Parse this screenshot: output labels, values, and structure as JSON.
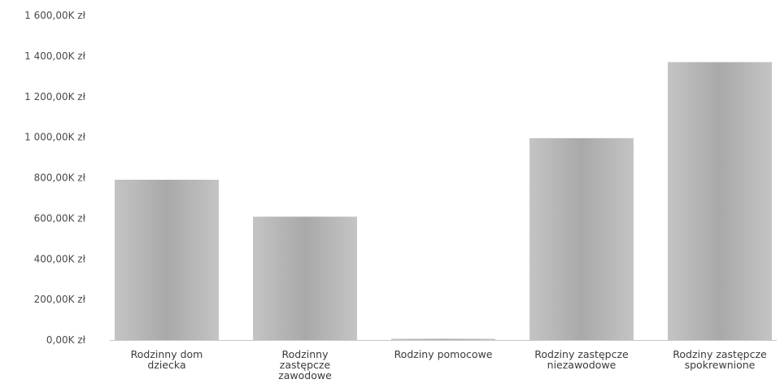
{
  "chart_data": {
    "type": "bar",
    "categories": [
      [
        "Rodzinny dom",
        "dziecka"
      ],
      [
        "Rodzinny",
        "zastępcze",
        "zawodowe"
      ],
      [
        "Rodziny pomocowe"
      ],
      [
        "Rodziny zastępcze",
        "niezawodowe"
      ],
      [
        "Rodziny zastępcze",
        "spokrewnione"
      ]
    ],
    "values": [
      790,
      608,
      2,
      995,
      1370
    ],
    "ylim": [
      0,
      1600
    ],
    "y_ticks": [
      {
        "value": 0,
        "label": "0,00K zł"
      },
      {
        "value": 200,
        "label": "200,00K zł"
      },
      {
        "value": 400,
        "label": "400,00K zł"
      },
      {
        "value": 600,
        "label": "600,00K zł"
      },
      {
        "value": 800,
        "label": "800,00K zł"
      },
      {
        "value": 1000,
        "label": "1 000,00K zł"
      },
      {
        "value": 1200,
        "label": "1 200,00K zł"
      },
      {
        "value": 1400,
        "label": "1 400,00K zł"
      },
      {
        "value": 1600,
        "label": "1 600,00K zł"
      }
    ],
    "bar_color": "#a9a9a9",
    "bar_color_light": "#c4c4c4",
    "grid": false,
    "legend": "none"
  }
}
